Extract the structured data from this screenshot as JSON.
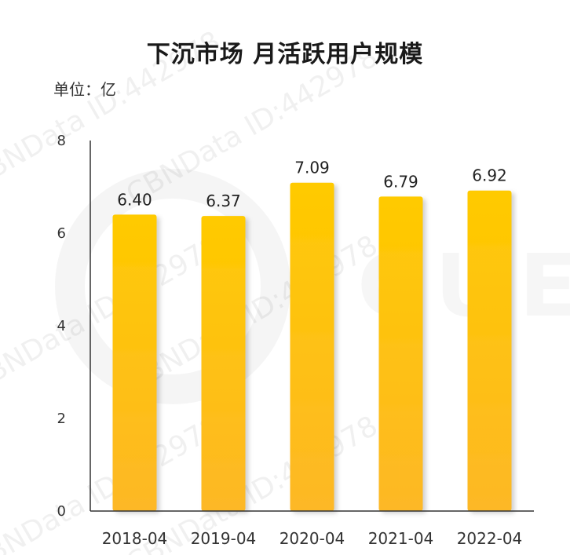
{
  "chart_data": {
    "type": "bar",
    "title": "下沉市场 月活跃用户规模",
    "unit_label": "单位：亿",
    "categories": [
      "2018-04",
      "2019-04",
      "2020-04",
      "2021-04",
      "2022-04"
    ],
    "values": [
      6.4,
      6.37,
      7.09,
      6.79,
      6.92
    ],
    "data_labels": [
      "6.40",
      "6.37",
      "7.09",
      "6.79",
      "6.92"
    ],
    "ylim": [
      0,
      8
    ],
    "yticks": [
      0,
      2,
      4,
      6,
      8
    ],
    "grid": false,
    "colors": {
      "bar_top": "#FFCA00",
      "bar_bottom": "#FDB826",
      "axis": "#333333"
    }
  },
  "watermark": {
    "text": "CBNData ID:442978",
    "brand": "CUES"
  }
}
